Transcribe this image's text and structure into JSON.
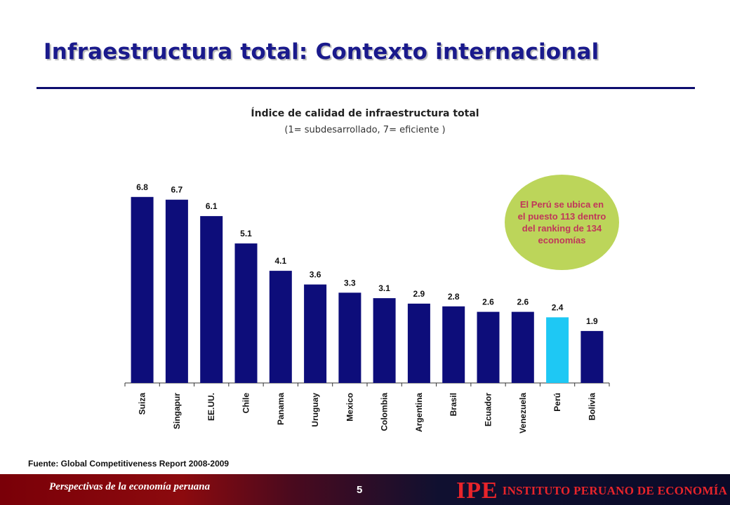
{
  "header": {
    "title": "Infraestructura total: Contexto internacional"
  },
  "callout": {
    "text": "El Perú se ubica en el puesto 113 dentro del ranking de 134 economías"
  },
  "source": "Fuente: Global Competitiveness Report 2008-2009",
  "footer": {
    "left_text": "Perspectivas de la economía peruana",
    "page_number": "5",
    "logo_abbr": "IPE",
    "logo_name": "INSTITUTO PERUANO DE ECONOMÍA"
  },
  "colors": {
    "bar": "#0d0d7a",
    "highlight": "#1ec8f4",
    "callout_bg": "#bcd55a",
    "callout_text": "#c0365a"
  },
  "chart_data": {
    "type": "bar",
    "title": "Índice de calidad de infraestructura total",
    "subtitle": "(1= subdesarrollado, 7= eficiente )",
    "categories": [
      "Suiza",
      "Singapur",
      "EE.UU.",
      "Chile",
      "Panama",
      "Uruguay",
      "Mexico",
      "Colombia",
      "Argentina",
      "Brasil",
      "Ecuador",
      "Venezuela",
      "Perú",
      "Bolivia"
    ],
    "values": [
      6.8,
      6.7,
      6.1,
      5.1,
      4.1,
      3.6,
      3.3,
      3.1,
      2.9,
      2.8,
      2.6,
      2.6,
      2.4,
      1.9
    ],
    "highlight": "Perú",
    "ylim": [
      0,
      7
    ],
    "xlabel": "",
    "ylabel": "",
    "grid": false,
    "data_labels": true
  }
}
